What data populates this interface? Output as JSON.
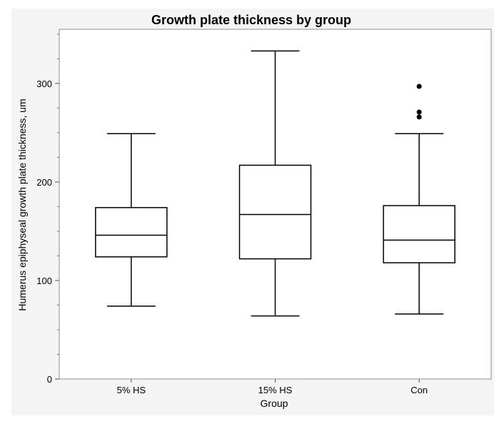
{
  "chart_data": {
    "type": "box",
    "title": "Growth plate thickness by group",
    "xlabel": "Group",
    "ylabel": "Humerus epiphyseal growth plate thickness, um",
    "ylim": [
      0,
      355
    ],
    "yticks": [
      0,
      100,
      200,
      300
    ],
    "grid": false,
    "categories": [
      "5% HS",
      "15% HS",
      "Con"
    ],
    "boxes": [
      {
        "category": "5% HS",
        "whisker_low": 74,
        "q1": 124,
        "median": 146,
        "q3": 174,
        "whisker_high": 249,
        "outliers": []
      },
      {
        "category": "15% HS",
        "whisker_low": 64,
        "q1": 122,
        "median": 167,
        "q3": 217,
        "whisker_high": 333,
        "outliers": []
      },
      {
        "category": "Con",
        "whisker_low": 66,
        "q1": 118,
        "median": 141,
        "q3": 176,
        "whisker_high": 249,
        "outliers": [
          266,
          271,
          297
        ]
      }
    ]
  }
}
